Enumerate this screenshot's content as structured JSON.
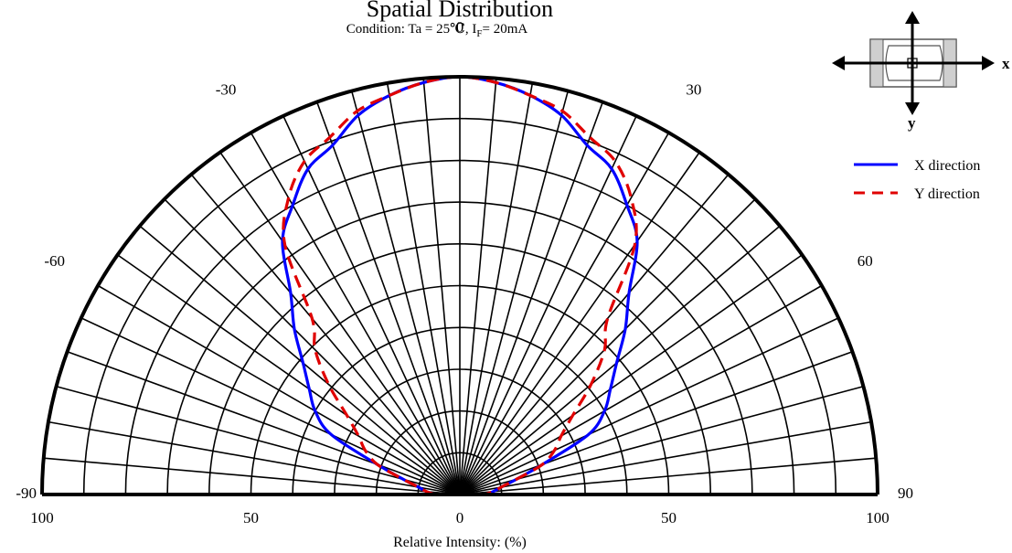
{
  "chart_data": {
    "type": "polar-line",
    "title": "Spatial Distribution",
    "subtitle": {
      "prefix": "Condition: Ta = 25℃, I",
      "subscript": "F",
      "suffix": "= 20mA"
    },
    "xlabel": "Relative Intensity: (%)",
    "angle_range": [
      -90,
      90
    ],
    "radial_range": [
      0,
      100
    ],
    "angle_tick_labels": [
      "-90",
      "-60",
      "-30",
      "0",
      "30",
      "60",
      "90"
    ],
    "radial_tick_labels": [
      "100",
      "50",
      "0",
      "50",
      "100"
    ],
    "grid": true,
    "legend_position": "top-right",
    "inset": {
      "x_label": "x",
      "y_label": "y"
    },
    "series": [
      {
        "name": "X direction",
        "color": "#0000ff",
        "style": "solid",
        "angles": [
          -90,
          -85,
          -80,
          -75,
          -70,
          -65,
          -60,
          -55,
          -50,
          -45,
          -40,
          -35,
          -30,
          -25,
          -20,
          -15,
          -10,
          -5,
          0,
          5,
          10,
          15,
          20,
          25,
          30,
          35,
          40,
          45,
          50,
          55,
          60,
          65,
          70,
          75,
          80,
          85,
          90
        ],
        "values": [
          6,
          8,
          10,
          14,
          21,
          34,
          40,
          44,
          49,
          56,
          63,
          74,
          80,
          86,
          89,
          94,
          97,
          99,
          100,
          99,
          97,
          94,
          89,
          86,
          80,
          74,
          63,
          56,
          49,
          44,
          40,
          34,
          21,
          14,
          10,
          8,
          6
        ]
      },
      {
        "name": "Y direction",
        "color": "#e00000",
        "style": "dashed",
        "angles": [
          -90,
          -85,
          -80,
          -75,
          -70,
          -65,
          -60,
          -55,
          -50,
          -45,
          -40,
          -35,
          -30,
          -25,
          -20,
          -15,
          -10,
          -5,
          0,
          5,
          10,
          15,
          20,
          25,
          30,
          35,
          40,
          45,
          50,
          55,
          60,
          65,
          70,
          75,
          80,
          85,
          90
        ],
        "values": [
          6,
          8,
          10,
          14,
          21,
          25,
          28,
          33,
          41,
          49,
          55,
          73,
          82,
          88,
          91,
          95,
          97,
          99,
          100,
          99,
          97,
          95,
          91,
          88,
          82,
          73,
          55,
          49,
          41,
          33,
          28,
          25,
          21,
          14,
          10,
          8,
          6
        ]
      }
    ]
  }
}
